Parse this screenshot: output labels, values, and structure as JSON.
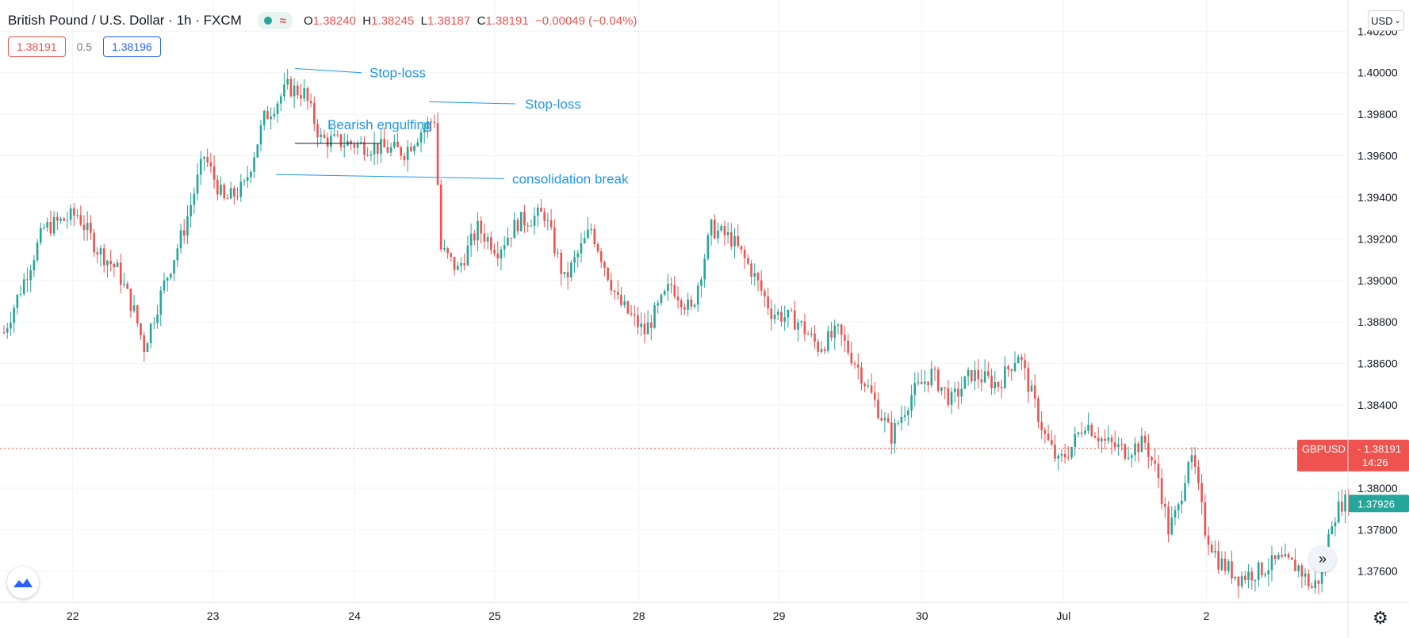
{
  "header": {
    "title": "British Pound / U.S. Dollar · 1h · FXCM",
    "ohlc": {
      "o_label": "O",
      "o": "1.38240",
      "h_label": "H",
      "h": "1.38245",
      "l_label": "L",
      "l": "1.38187",
      "c_label": "C",
      "c": "1.38191",
      "change": "−0.00049 (−0.04%)"
    },
    "bid": "1.38191",
    "spread": "0.5",
    "ask": "1.38196"
  },
  "currency_button": "USD",
  "colors": {
    "up": "#26a69a",
    "down": "#ef5350",
    "annotation": "#2196f3",
    "grid": "#f0f3fa"
  },
  "chart_data": {
    "type": "candlestick",
    "symbol": "GBPUSD",
    "interval": "1h",
    "ylim": [
      1.3745,
      1.4035
    ],
    "y_ticks": [
      "1.40200",
      "1.40000",
      "1.39800",
      "1.39600",
      "1.39400",
      "1.39200",
      "1.39000",
      "1.38800",
      "1.38600",
      "1.38400",
      "1.38000",
      "1.37800",
      "1.37600"
    ],
    "x_ticks": [
      "22",
      "23",
      "24",
      "25",
      "28",
      "29",
      "30",
      "Jul",
      "2"
    ],
    "last_price": {
      "symbol_label": "GBPUSD",
      "value": "1.38191",
      "countdown": "14:26"
    },
    "second_marker": {
      "value": "1.37926"
    },
    "annotations": [
      "Stop-loss",
      "Stop-loss",
      "Bearish engulfing",
      "consolidation break"
    ],
    "anchors": [
      {
        "x": 0,
        "y": 1.3875
      },
      {
        "x": 12,
        "y": 1.3925
      },
      {
        "x": 22,
        "y": 1.3932
      },
      {
        "x": 28,
        "y": 1.3915
      },
      {
        "x": 34,
        "y": 1.3905
      },
      {
        "x": 39,
        "y": 1.3885
      },
      {
        "x": 42,
        "y": 1.3868
      },
      {
        "x": 48,
        "y": 1.3898
      },
      {
        "x": 54,
        "y": 1.3925
      },
      {
        "x": 60,
        "y": 1.396
      },
      {
        "x": 66,
        "y": 1.3938
      },
      {
        "x": 72,
        "y": 1.3945
      },
      {
        "x": 78,
        "y": 1.3978
      },
      {
        "x": 85,
        "y": 1.3993
      },
      {
        "x": 90,
        "y": 1.399
      },
      {
        "x": 95,
        "y": 1.3968
      },
      {
        "x": 120,
        "y": 1.3962
      },
      {
        "x": 125,
        "y": 1.3972
      },
      {
        "x": 129,
        "y": 1.3978
      },
      {
        "x": 131,
        "y": 1.3915
      },
      {
        "x": 136,
        "y": 1.3905
      },
      {
        "x": 142,
        "y": 1.3925
      },
      {
        "x": 148,
        "y": 1.3915
      },
      {
        "x": 154,
        "y": 1.3928
      },
      {
        "x": 162,
        "y": 1.3932
      },
      {
        "x": 168,
        "y": 1.39
      },
      {
        "x": 176,
        "y": 1.3925
      },
      {
        "x": 184,
        "y": 1.389
      },
      {
        "x": 192,
        "y": 1.3875
      },
      {
        "x": 200,
        "y": 1.3898
      },
      {
        "x": 206,
        "y": 1.3885
      },
      {
        "x": 212,
        "y": 1.3925
      },
      {
        "x": 218,
        "y": 1.392
      },
      {
        "x": 224,
        "y": 1.3905
      },
      {
        "x": 230,
        "y": 1.3885
      },
      {
        "x": 238,
        "y": 1.388
      },
      {
        "x": 244,
        "y": 1.3868
      },
      {
        "x": 250,
        "y": 1.3875
      },
      {
        "x": 256,
        "y": 1.3858
      },
      {
        "x": 262,
        "y": 1.3838
      },
      {
        "x": 266,
        "y": 1.3825
      },
      {
        "x": 272,
        "y": 1.3845
      },
      {
        "x": 278,
        "y": 1.3855
      },
      {
        "x": 284,
        "y": 1.3842
      },
      {
        "x": 290,
        "y": 1.3855
      },
      {
        "x": 298,
        "y": 1.385
      },
      {
        "x": 304,
        "y": 1.3865
      },
      {
        "x": 308,
        "y": 1.3845
      },
      {
        "x": 312,
        "y": 1.3825
      },
      {
        "x": 316,
        "y": 1.3812
      },
      {
        "x": 320,
        "y": 1.382
      },
      {
        "x": 324,
        "y": 1.3832
      },
      {
        "x": 330,
        "y": 1.3822
      },
      {
        "x": 336,
        "y": 1.3818
      },
      {
        "x": 342,
        "y": 1.3822
      },
      {
        "x": 346,
        "y": 1.3805
      },
      {
        "x": 349,
        "y": 1.378
      },
      {
        "x": 352,
        "y": 1.379
      },
      {
        "x": 355,
        "y": 1.3815
      },
      {
        "x": 357,
        "y": 1.3808
      },
      {
        "x": 360,
        "y": 1.378
      },
      {
        "x": 364,
        "y": 1.3765
      },
      {
        "x": 370,
        "y": 1.3757
      },
      {
        "x": 376,
        "y": 1.376
      },
      {
        "x": 382,
        "y": 1.3765
      },
      {
        "x": 388,
        "y": 1.3762
      },
      {
        "x": 392,
        "y": 1.3752
      },
      {
        "x": 395,
        "y": 1.3758
      },
      {
        "x": 398,
        "y": 1.3785
      },
      {
        "x": 401,
        "y": 1.3793
      }
    ]
  }
}
